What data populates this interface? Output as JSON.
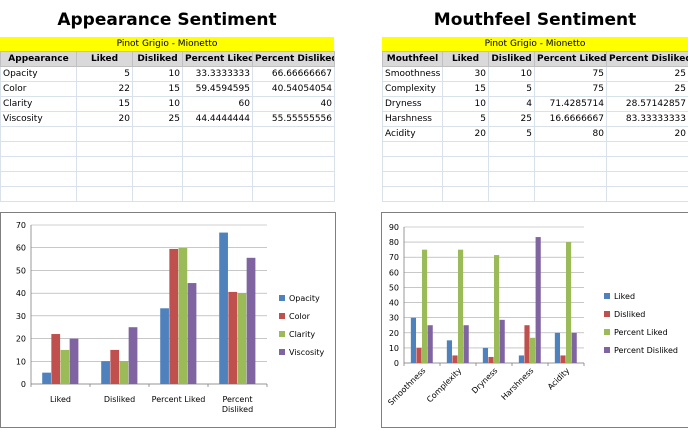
{
  "left": {
    "title": "Appearance Sentiment",
    "subtitle": "Pinot Grigio - Mionetto",
    "headers": [
      "Appearance",
      "Liked",
      "Disliked",
      "Percent Liked",
      "Percent Disliked"
    ],
    "rows": [
      [
        "Opacity",
        "5",
        "10",
        "33.3333333",
        "66.66666667"
      ],
      [
        "Color",
        "22",
        "15",
        "59.4594595",
        "40.54054054"
      ],
      [
        "Clarity",
        "15",
        "10",
        "60",
        "40"
      ],
      [
        "Viscosity",
        "20",
        "25",
        "44.4444444",
        "55.55555556"
      ]
    ]
  },
  "right": {
    "title": "Mouthfeel Sentiment",
    "subtitle": "Pinot Grigio - Mionetto",
    "headers": [
      "Mouthfeel",
      "Liked",
      "Disliked",
      "Percent Liked",
      "Percent Disliked"
    ],
    "rows": [
      [
        "Smoothness",
        "30",
        "10",
        "75",
        "25"
      ],
      [
        "Complexity",
        "15",
        "5",
        "75",
        "25"
      ],
      [
        "Dryness",
        "10",
        "4",
        "71.4285714",
        "28.57142857"
      ],
      [
        "Harshness",
        "5",
        "25",
        "16.6666667",
        "83.33333333"
      ],
      [
        "Acidity",
        "20",
        "5",
        "80",
        "20"
      ]
    ]
  },
  "chart_data": [
    {
      "type": "bar",
      "categories": [
        "Liked",
        "Disliked",
        "Percent Liked",
        "Percent Disliked"
      ],
      "series": [
        {
          "name": "Opacity",
          "values": [
            5,
            10,
            33.3333333,
            66.66666667
          ],
          "color": "#4f81bd"
        },
        {
          "name": "Color",
          "values": [
            22,
            15,
            59.4594595,
            40.54054054
          ],
          "color": "#c0504d"
        },
        {
          "name": "Clarity",
          "values": [
            15,
            10,
            60,
            40
          ],
          "color": "#9bbb59"
        },
        {
          "name": "Viscosity",
          "values": [
            20,
            25,
            44.4444444,
            55.55555556
          ],
          "color": "#8064a2"
        }
      ],
      "ylim": [
        0,
        70
      ],
      "yticks": [
        0,
        10,
        20,
        30,
        40,
        50,
        60,
        70
      ],
      "legend": "right",
      "grid": true
    },
    {
      "type": "bar",
      "categories": [
        "Smoothness",
        "Complexity",
        "Dryness",
        "Harshness",
        "Acidity"
      ],
      "series": [
        {
          "name": "Liked",
          "values": [
            30,
            15,
            10,
            5,
            20
          ],
          "color": "#4f81bd"
        },
        {
          "name": "Disliked",
          "values": [
            10,
            5,
            4,
            25,
            5
          ],
          "color": "#c0504d"
        },
        {
          "name": "Percent Liked",
          "values": [
            75,
            75,
            71.4285714,
            16.6666667,
            80
          ],
          "color": "#9bbb59"
        },
        {
          "name": "Percent Disliked",
          "values": [
            25,
            25,
            28.57142857,
            83.33333333,
            20
          ],
          "color": "#8064a2"
        }
      ],
      "ylim": [
        0,
        90
      ],
      "yticks": [
        0,
        10,
        20,
        30,
        40,
        50,
        60,
        70,
        80,
        90
      ],
      "legend": "right",
      "grid": true
    }
  ]
}
